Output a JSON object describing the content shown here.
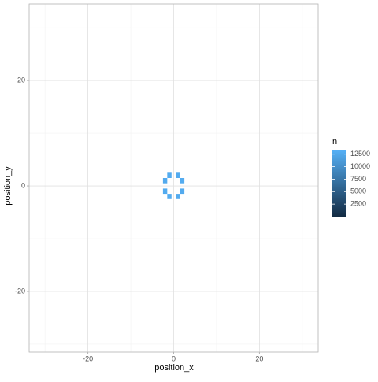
{
  "chart_data": {
    "type": "bin2d",
    "x_label": "position_x",
    "y_label": "position_y",
    "legend_title": "n",
    "x": [
      -1,
      1,
      -2,
      2,
      -2,
      2,
      -1,
      1
    ],
    "y": [
      2,
      2,
      1,
      1,
      -1,
      -1,
      -2,
      -2
    ],
    "values": [
      12900,
      12800,
      12700,
      12900,
      12800,
      12700,
      12900,
      12800
    ],
    "xlim": [
      -33.7,
      33.7
    ],
    "xticks": [
      -20,
      0,
      20
    ],
    "ylim": [
      -31.5,
      34.5
    ],
    "yticks": [
      -20,
      0,
      20
    ],
    "colorlim": [
      0,
      13400
    ],
    "colorticks": [
      2500,
      5000,
      7500,
      10000,
      12500
    ],
    "colors": [
      "#132B43",
      "#56B1F7"
    ],
    "grid": true
  }
}
